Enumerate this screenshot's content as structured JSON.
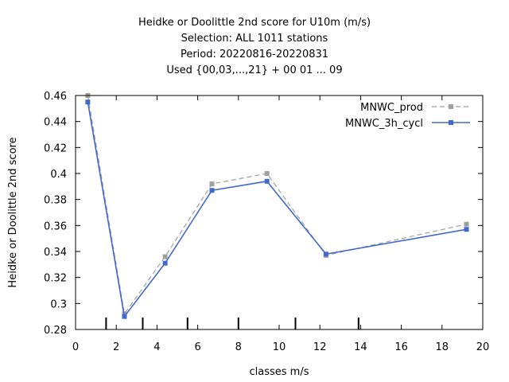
{
  "chart_data": {
    "type": "line",
    "title_lines": [
      "Heidke or Doolittle 2nd score  for U10m (m/s)",
      "Selection: ALL    1011 stations",
      "Period: 20220816-20220831",
      "Used {00,03,...,21} + 00 01 ... 09"
    ],
    "xlabel": "classes m/s",
    "ylabel": "Heidke or Doolittle 2nd score",
    "xlim": [
      0,
      20
    ],
    "ylim": [
      0.28,
      0.46
    ],
    "x_ticks": [
      "0",
      "2",
      "4",
      "6",
      "8",
      "10",
      "12",
      "14",
      "16",
      "18",
      "20"
    ],
    "y_ticks": [
      "0.28",
      "0.3",
      "0.32",
      "0.34",
      "0.36",
      "0.38",
      "0.4",
      "0.42",
      "0.44",
      "0.46"
    ],
    "class_bounds": [
      1.5,
      3.3,
      5.5,
      8.0,
      10.8,
      13.9
    ],
    "legend_position": "top-right",
    "grid": false,
    "series": [
      {
        "name": "MNWC_prod",
        "color": "#a0a0a0",
        "dashed": true,
        "x": [
          0.6,
          2.4,
          4.4,
          6.7,
          9.4,
          12.3,
          19.2
        ],
        "y": [
          0.46,
          0.292,
          0.336,
          0.392,
          0.4,
          0.337,
          0.361
        ]
      },
      {
        "name": "MNWC_3h_cycl",
        "color": "#4169cd",
        "dashed": false,
        "x": [
          0.6,
          2.4,
          4.4,
          6.7,
          9.4,
          12.3,
          19.2
        ],
        "y": [
          0.455,
          0.29,
          0.331,
          0.387,
          0.394,
          0.338,
          0.357
        ]
      }
    ]
  }
}
